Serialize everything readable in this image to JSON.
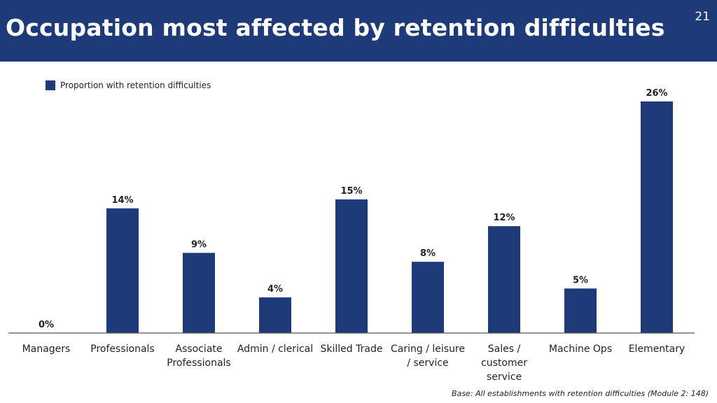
{
  "header": {
    "title": "Occupation most affected by retention difficulties",
    "page_number": "21"
  },
  "footnote": "Base: All establishments  with retention difficulties (Module 2: 148)",
  "colors": {
    "header": "#1e3a78",
    "bar": "#1f3a78",
    "axis": "#555555"
  },
  "chart_data": {
    "type": "bar",
    "legend": "Proportion with retention difficulties",
    "legend_position": "top-left",
    "grid": false,
    "ylim": [
      0,
      26
    ],
    "categories": [
      "Managers",
      "Professionals",
      "Associate Professionals",
      "Admin / clerical",
      "Skilled Trade",
      "Caring / leisure / service",
      "Sales / customer service",
      "Machine Ops",
      "Elementary"
    ],
    "category_lines": [
      [
        "Managers"
      ],
      [
        "Professionals"
      ],
      [
        "Associate",
        "Professionals"
      ],
      [
        "Admin / clerical"
      ],
      [
        "Skilled Trade"
      ],
      [
        "Caring / leisure",
        "/ service"
      ],
      [
        "Sales /",
        "customer",
        "service"
      ],
      [
        "Machine Ops"
      ],
      [
        "Elementary"
      ]
    ],
    "values": [
      0,
      14,
      9,
      4,
      15,
      8,
      12,
      5,
      26
    ],
    "value_labels": [
      "0%",
      "14%",
      "9%",
      "4%",
      "15%",
      "8%",
      "12%",
      "5%",
      "26%"
    ]
  }
}
